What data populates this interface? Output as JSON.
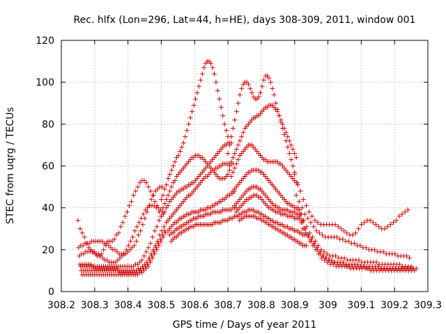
{
  "chart_data": {
    "type": "scatter",
    "title": "Rec. hlfx (Lon=296, Lat=44, h=HE), days 308-309, 2011, window 001",
    "xlabel": "GPS time / Days of year 2011",
    "ylabel": "STEC from uqrg / TECUs",
    "xlim": [
      308.2,
      309.3
    ],
    "ylim": [
      0,
      120
    ],
    "x_ticks": [
      "308.2",
      "308.3",
      "308.4",
      "308.5",
      "308.6",
      "308.7",
      "308.8",
      "308.9",
      "309",
      "309.1",
      "309.2",
      "309.3"
    ],
    "y_ticks": [
      "0",
      "20",
      "40",
      "60",
      "80",
      "100",
      "120"
    ],
    "grid": true,
    "legend": "none",
    "marker": "plus",
    "color": "#cc0000",
    "points_per_track": 40,
    "series": [
      {
        "x_start": 308.25,
        "x_end": 308.5,
        "y": [
          34,
          30,
          28,
          26,
          23,
          21,
          20,
          19,
          18,
          17,
          17,
          18,
          20,
          22,
          24,
          24,
          24,
          25,
          27,
          28,
          31,
          33,
          36,
          38,
          41,
          43,
          46,
          48,
          50,
          52,
          53,
          53,
          52,
          50,
          48,
          46,
          43,
          41,
          38,
          36
        ]
      },
      {
        "x_start": 308.252,
        "x_end": 308.502,
        "y": [
          21,
          22,
          22,
          23,
          23,
          23,
          24,
          24,
          24,
          24,
          24,
          24,
          23,
          23,
          22,
          21,
          20,
          20,
          19,
          18,
          18,
          18,
          18,
          19,
          20,
          21,
          22,
          24,
          27,
          29,
          32,
          35,
          38,
          41,
          44,
          46,
          48,
          49,
          50,
          50
        ]
      },
      {
        "x_start": 308.254,
        "x_end": 308.504,
        "y": [
          17,
          18,
          18,
          19,
          19,
          19,
          19,
          19,
          18,
          18,
          17,
          16,
          15,
          15,
          14,
          14,
          14,
          14,
          15,
          16,
          17,
          18,
          20,
          22,
          24,
          26,
          29,
          31,
          33,
          35,
          37,
          39,
          40,
          41,
          41,
          41,
          40,
          40,
          39,
          38
        ]
      },
      {
        "x_start": 308.256,
        "x_end": 308.506,
        "y": [
          13,
          13,
          13,
          13,
          13,
          13,
          12,
          12,
          12,
          12,
          12,
          12,
          12,
          12,
          12,
          12,
          12,
          12,
          12,
          12,
          12,
          12,
          12,
          12,
          12,
          12,
          13,
          13,
          14,
          15,
          17,
          19,
          21,
          23,
          26,
          29,
          31,
          34,
          36,
          37
        ]
      },
      {
        "x_start": 308.258,
        "x_end": 308.508,
        "y": [
          12,
          12,
          12,
          12,
          12,
          12,
          12,
          11,
          11,
          11,
          11,
          11,
          11,
          11,
          11,
          11,
          11,
          11,
          10,
          10,
          10,
          10,
          10,
          10,
          10,
          10,
          10,
          11,
          11,
          12,
          13,
          14,
          16,
          18,
          20,
          22,
          24,
          27,
          29,
          31
        ]
      },
      {
        "x_start": 308.26,
        "x_end": 308.51,
        "y": [
          10,
          10,
          10,
          10,
          10,
          10,
          10,
          10,
          10,
          10,
          10,
          10,
          10,
          10,
          10,
          10,
          10,
          10,
          9,
          9,
          9,
          9,
          9,
          9,
          9,
          9,
          9,
          10,
          10,
          11,
          12,
          13,
          15,
          17,
          19,
          21,
          23,
          25,
          27,
          29
        ]
      },
      {
        "x_start": 308.262,
        "x_end": 308.512,
        "y": [
          8,
          8,
          8,
          8,
          8,
          8,
          8,
          8,
          8,
          8,
          8,
          8,
          8,
          8,
          8,
          8,
          8,
          8,
          8,
          8,
          8,
          8,
          8,
          8,
          8,
          8,
          8,
          9,
          9,
          10,
          11,
          12,
          14,
          16,
          18,
          20,
          22,
          24,
          26,
          28
        ]
      },
      {
        "x_start": 308.5,
        "x_end": 308.7,
        "y": [
          44,
          46,
          49,
          51,
          54,
          56,
          58,
          60,
          62,
          64,
          65,
          67,
          69,
          71,
          74,
          77,
          80,
          83,
          86,
          89,
          92,
          95,
          98,
          101,
          104,
          107,
          109,
          110,
          110,
          109,
          107,
          104,
          100,
          96,
          92,
          88,
          84,
          80,
          77,
          74
        ]
      },
      {
        "x_start": 308.505,
        "x_end": 308.705,
        "y": [
          40,
          42,
          44,
          46,
          48,
          50,
          52,
          53,
          55,
          56,
          57,
          58,
          59,
          60,
          61,
          62,
          63,
          64,
          64,
          65,
          65,
          65,
          64,
          64,
          63,
          62,
          61,
          60,
          59,
          58,
          57,
          56,
          55,
          54,
          54,
          54,
          54,
          55,
          56,
          58
        ]
      },
      {
        "x_start": 308.51,
        "x_end": 308.71,
        "y": [
          38,
          40,
          41,
          43,
          44,
          45,
          46,
          47,
          48,
          48,
          49,
          49,
          50,
          50,
          51,
          51,
          52,
          52,
          53,
          54,
          55,
          56,
          57,
          58,
          59,
          60,
          61,
          62,
          63,
          64,
          65,
          66,
          67,
          68,
          69,
          70,
          70,
          71,
          71,
          71
        ]
      },
      {
        "x_start": 308.515,
        "x_end": 308.715,
        "y": [
          33,
          34,
          35,
          36,
          37,
          38,
          39,
          40,
          41,
          42,
          43,
          44,
          45,
          46,
          46,
          47,
          48,
          49,
          50,
          51,
          52,
          53,
          54,
          55,
          55,
          56,
          57,
          58,
          58,
          59,
          59,
          60,
          60,
          61,
          61,
          61,
          61,
          61,
          61,
          61
        ]
      },
      {
        "x_start": 308.52,
        "x_end": 308.72,
        "y": [
          29,
          30,
          31,
          32,
          33,
          33,
          34,
          35,
          35,
          36,
          36,
          37,
          37,
          37,
          38,
          38,
          38,
          38,
          38,
          39,
          39,
          39,
          39,
          40,
          40,
          40,
          41,
          41,
          42,
          42,
          43,
          43,
          44,
          44,
          45,
          46,
          46,
          47,
          47,
          48
        ]
      },
      {
        "x_start": 308.525,
        "x_end": 308.725,
        "y": [
          27,
          28,
          28,
          29,
          30,
          30,
          31,
          31,
          32,
          32,
          33,
          33,
          34,
          34,
          35,
          35,
          35,
          36,
          36,
          36,
          36,
          37,
          37,
          37,
          37,
          38,
          38,
          38,
          38,
          38,
          38,
          39,
          39,
          39,
          39,
          39,
          39,
          40,
          40,
          40
        ]
      },
      {
        "x_start": 308.53,
        "x_end": 308.73,
        "y": [
          24,
          25,
          26,
          26,
          27,
          28,
          28,
          29,
          29,
          30,
          30,
          31,
          31,
          31,
          32,
          32,
          32,
          32,
          32,
          32,
          32,
          32,
          32,
          32,
          32,
          33,
          33,
          33,
          33,
          33,
          34,
          34,
          34,
          34,
          35,
          35,
          35,
          36,
          36,
          36
        ]
      },
      {
        "x_start": 308.7,
        "x_end": 308.9,
        "y": [
          66,
          70,
          74,
          78,
          82,
          86,
          90,
          94,
          97,
          99,
          100,
          100,
          99,
          97,
          95,
          93,
          92,
          92,
          93,
          95,
          98,
          101,
          103,
          103,
          102,
          100,
          97,
          94,
          90,
          87,
          84,
          81,
          78,
          75,
          72,
          69,
          66,
          63,
          60,
          57
        ]
      },
      {
        "x_start": 308.705,
        "x_end": 308.905,
        "y": [
          60,
          62,
          64,
          66,
          68,
          70,
          72,
          74,
          76,
          78,
          79,
          80,
          81,
          82,
          83,
          83,
          84,
          84,
          85,
          86,
          87,
          88,
          88,
          89,
          89,
          89,
          88,
          87,
          86,
          84,
          82,
          80,
          78,
          76,
          74,
          72,
          70,
          68,
          66,
          64
        ]
      },
      {
        "x_start": 308.71,
        "x_end": 308.91,
        "y": [
          55,
          57,
          59,
          61,
          63,
          65,
          66,
          67,
          68,
          69,
          70,
          70,
          70,
          69,
          68,
          67,
          66,
          65,
          64,
          63,
          63,
          62,
          62,
          62,
          62,
          62,
          62,
          62,
          61,
          61,
          60,
          59,
          58,
          57,
          56,
          55,
          54,
          53,
          52,
          51
        ]
      },
      {
        "x_start": 308.715,
        "x_end": 308.915,
        "y": [
          48,
          49,
          50,
          51,
          52,
          53,
          54,
          55,
          56,
          57,
          57,
          58,
          58,
          58,
          58,
          58,
          57,
          57,
          56,
          55,
          54,
          53,
          52,
          51,
          50,
          49,
          48,
          47,
          46,
          45,
          44,
          43,
          42,
          42,
          41,
          41,
          40,
          40,
          39,
          39
        ]
      },
      {
        "x_start": 308.72,
        "x_end": 308.92,
        "y": [
          41,
          42,
          43,
          44,
          45,
          46,
          47,
          48,
          49,
          49,
          50,
          50,
          50,
          50,
          49,
          49,
          48,
          47,
          46,
          45,
          44,
          43,
          42,
          41,
          41,
          40,
          40,
          39,
          39,
          39,
          39,
          39,
          38,
          38,
          38,
          38,
          37,
          37,
          37,
          37
        ]
      },
      {
        "x_start": 308.725,
        "x_end": 308.925,
        "y": [
          38,
          39,
          40,
          41,
          42,
          43,
          44,
          44,
          45,
          45,
          46,
          46,
          46,
          45,
          45,
          44,
          43,
          42,
          41,
          40,
          40,
          39,
          39,
          38,
          38,
          38,
          37,
          37,
          37,
          37,
          36,
          36,
          36,
          36,
          35,
          35,
          35,
          35,
          34,
          34
        ]
      },
      {
        "x_start": 308.73,
        "x_end": 308.93,
        "y": [
          36,
          37,
          37,
          38,
          38,
          38,
          39,
          39,
          39,
          39,
          38,
          38,
          38,
          37,
          37,
          36,
          36,
          35,
          35,
          34,
          34,
          33,
          33,
          33,
          32,
          32,
          32,
          31,
          31,
          31,
          30,
          30,
          30,
          29,
          29,
          29,
          28,
          28,
          27,
          27
        ]
      },
      {
        "x_start": 308.735,
        "x_end": 308.935,
        "y": [
          34,
          35,
          35,
          36,
          36,
          36,
          36,
          36,
          36,
          36,
          35,
          35,
          35,
          34,
          34,
          33,
          33,
          32,
          32,
          31,
          31,
          30,
          30,
          29,
          29,
          28,
          28,
          27,
          27,
          26,
          26,
          25,
          25,
          24,
          24,
          23,
          23,
          22,
          22,
          22
        ]
      },
      {
        "x_start": 308.9,
        "x_end": 309.24,
        "y": [
          56,
          52,
          48,
          44,
          41,
          38,
          36,
          34,
          33,
          32,
          32,
          32,
          32,
          32,
          32,
          31,
          30,
          29,
          28,
          27,
          27,
          28,
          30,
          32,
          33,
          34,
          34,
          33,
          32,
          31,
          30,
          30,
          31,
          32,
          33,
          34,
          36,
          37,
          38,
          39
        ]
      },
      {
        "x_start": 308.905,
        "x_end": 309.245,
        "y": [
          46,
          43,
          40,
          37,
          35,
          33,
          31,
          29,
          28,
          27,
          26,
          26,
          26,
          26,
          26,
          25,
          25,
          24,
          24,
          23,
          23,
          22,
          22,
          21,
          21,
          20,
          20,
          20,
          19,
          19,
          19,
          18,
          18,
          18,
          18,
          17,
          17,
          17,
          17,
          16
        ]
      },
      {
        "x_start": 308.91,
        "x_end": 309.25,
        "y": [
          40,
          37,
          34,
          31,
          28,
          26,
          24,
          22,
          20,
          19,
          18,
          17,
          17,
          17,
          16,
          16,
          16,
          15,
          15,
          15,
          15,
          15,
          14,
          14,
          14,
          14,
          14,
          14,
          13,
          13,
          13,
          13,
          13,
          13,
          13,
          13,
          12,
          12,
          12,
          12
        ]
      },
      {
        "x_start": 308.915,
        "x_end": 309.255,
        "y": [
          36,
          33,
          30,
          27,
          25,
          23,
          21,
          19,
          17,
          16,
          15,
          15,
          14,
          14,
          14,
          14,
          13,
          13,
          13,
          13,
          13,
          12,
          12,
          12,
          12,
          12,
          12,
          12,
          11,
          11,
          11,
          11,
          11,
          11,
          11,
          11,
          11,
          11,
          11,
          11
        ]
      },
      {
        "x_start": 308.92,
        "x_end": 309.26,
        "y": [
          33,
          30,
          27,
          24,
          22,
          20,
          18,
          16,
          15,
          14,
          13,
          13,
          12,
          12,
          12,
          12,
          12,
          11,
          11,
          11,
          11,
          11,
          11,
          11,
          10,
          10,
          10,
          10,
          10,
          10,
          10,
          10,
          10,
          10,
          10,
          10,
          10,
          10,
          10,
          10
        ]
      },
      {
        "x_start": 308.925,
        "x_end": 309.265,
        "y": [
          30,
          28,
          26,
          24,
          22,
          20,
          18,
          17,
          16,
          15,
          14,
          14,
          13,
          13,
          13,
          12,
          12,
          12,
          12,
          12,
          12,
          12,
          11,
          11,
          11,
          11,
          11,
          11,
          11,
          11,
          11,
          11,
          11,
          11,
          11,
          11,
          11,
          11,
          11,
          11
        ]
      }
    ]
  }
}
